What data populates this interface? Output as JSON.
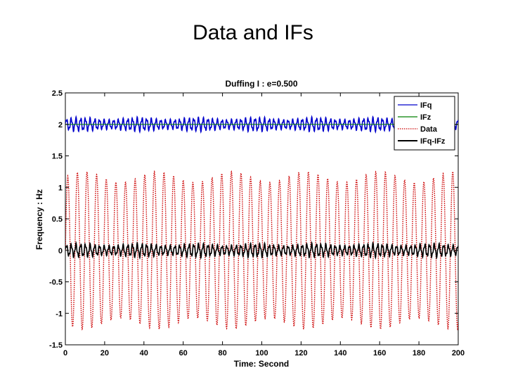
{
  "slide": {
    "title": "Data and IFs"
  },
  "chart_data": {
    "type": "line",
    "title": "Duffing I : e=0.500",
    "xlabel": "Time: Second",
    "ylabel": "Frequency : Hz",
    "xlim": [
      0,
      200
    ],
    "ylim": [
      -1.5,
      2.5
    ],
    "xticks": [
      "0",
      "20",
      "40",
      "60",
      "80",
      "100",
      "120",
      "140",
      "160",
      "180",
      "200"
    ],
    "yticks": [
      "2.5",
      "2",
      "1.5",
      "1",
      "0.5",
      "0",
      "-0.5",
      "-1",
      "-1.5"
    ],
    "grid": false,
    "legend_position": "top-right",
    "series": [
      {
        "name": "IFq",
        "color": "#0000cc",
        "style": "solid",
        "pattern": {
          "center": 2.0,
          "amplitude": 0.12,
          "period": 2.4
        }
      },
      {
        "name": "IFz",
        "color": "#008000",
        "style": "solid",
        "pattern": {
          "center": 2.0,
          "amplitude": 0.0,
          "period": 0
        }
      },
      {
        "name": "Data",
        "color": "#cc0000",
        "style": "dotted",
        "pattern": {
          "center": 0.0,
          "amplitude": 1.25,
          "period": 4.9
        }
      },
      {
        "name": "IFq-IFz",
        "color": "#000000",
        "style": "solid",
        "pattern": {
          "center": 0.0,
          "amplitude": 0.12,
          "period": 2.4
        }
      }
    ]
  }
}
